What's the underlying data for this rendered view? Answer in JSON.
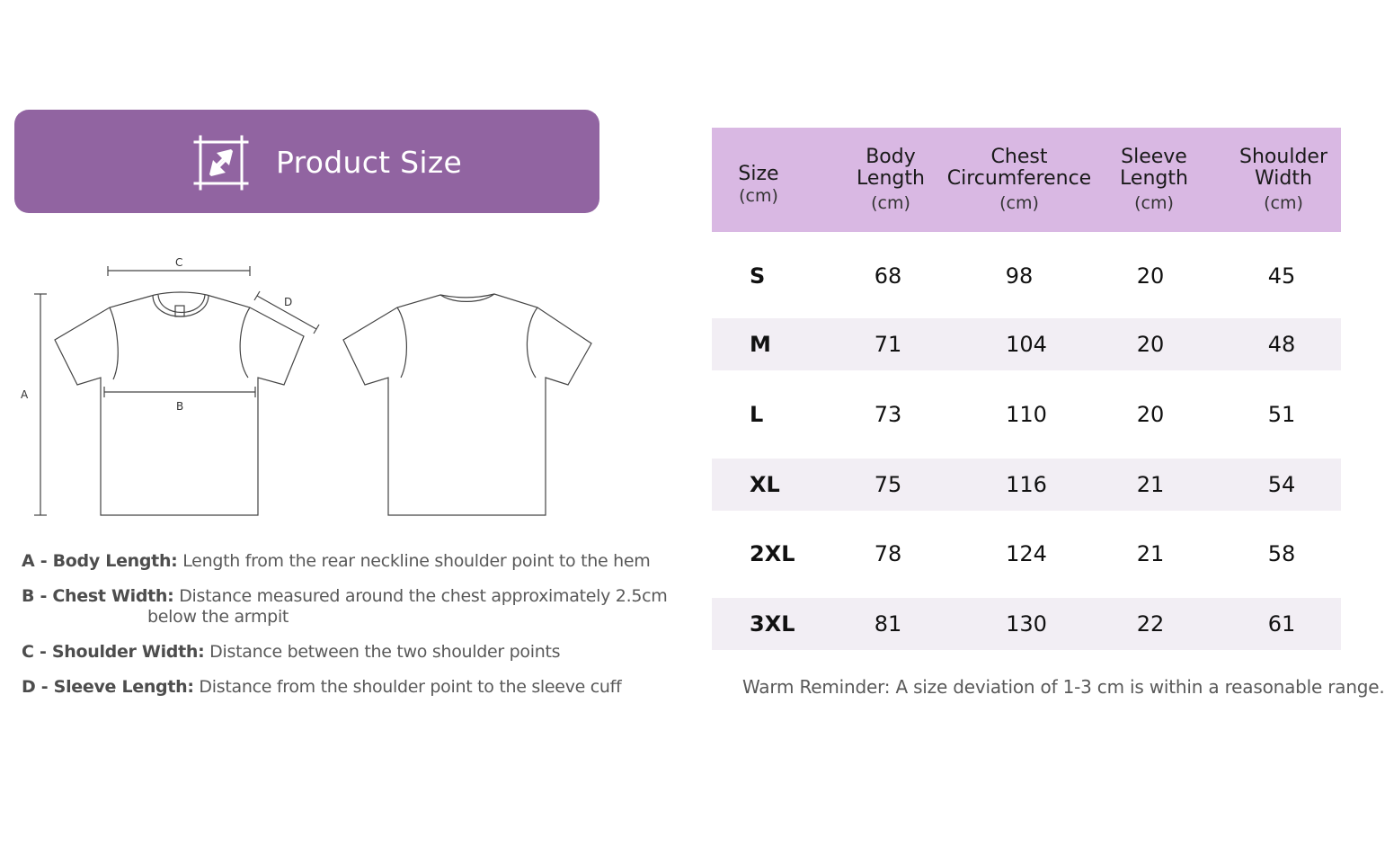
{
  "banner": {
    "title": "Product Size",
    "icon": "resize-arrows-icon"
  },
  "diagram": {
    "labels": {
      "a": "A",
      "b": "B",
      "c": "C",
      "d": "D"
    }
  },
  "legend": [
    {
      "key": "A - Body Length:",
      "text": "Length from the rear neckline shoulder point to the hem",
      "cont": ""
    },
    {
      "key": "B - Chest Width:",
      "text": "Distance measured around the chest approximately 2.5cm",
      "cont": "below the armpit"
    },
    {
      "key": "C - Shoulder Width:",
      "text": "Distance between the two shoulder points",
      "cont": ""
    },
    {
      "key": "D - Sleeve Length:",
      "text": "Distance from the shoulder point to the sleeve cuff",
      "cont": ""
    }
  ],
  "table": {
    "header": {
      "size": {
        "l1": "Size",
        "unit": "(cm)"
      },
      "body": {
        "l1": "Body",
        "l2": "Length",
        "unit": "(cm)"
      },
      "chest": {
        "l1": "Chest",
        "l2": "Circumference",
        "unit": "(cm)"
      },
      "sleeve": {
        "l1": "Sleeve",
        "l2": "Length",
        "unit": "(cm)"
      },
      "shoulder": {
        "l1": "Shoulder",
        "l2": "Width",
        "unit": "(cm)"
      }
    },
    "rows": [
      {
        "size": "S",
        "body": "68",
        "chest": "98",
        "sleeve": "20",
        "shoulder": "45"
      },
      {
        "size": "M",
        "body": "71",
        "chest": "104",
        "sleeve": "20",
        "shoulder": "48"
      },
      {
        "size": "L",
        "body": "73",
        "chest": "110",
        "sleeve": "20",
        "shoulder": "51"
      },
      {
        "size": "XL",
        "body": "75",
        "chest": "116",
        "sleeve": "21",
        "shoulder": "54"
      },
      {
        "size": "2XL",
        "body": "78",
        "chest": "124",
        "sleeve": "21",
        "shoulder": "58"
      },
      {
        "size": "3XL",
        "body": "81",
        "chest": "130",
        "sleeve": "22",
        "shoulder": "61"
      }
    ]
  },
  "reminder": "Warm Reminder: A size deviation of 1-3 cm is within a reasonable range.",
  "colors": {
    "accent": "#9164a1",
    "header_bg": "#d9b8e3",
    "row_shade": "#f2eef4"
  }
}
